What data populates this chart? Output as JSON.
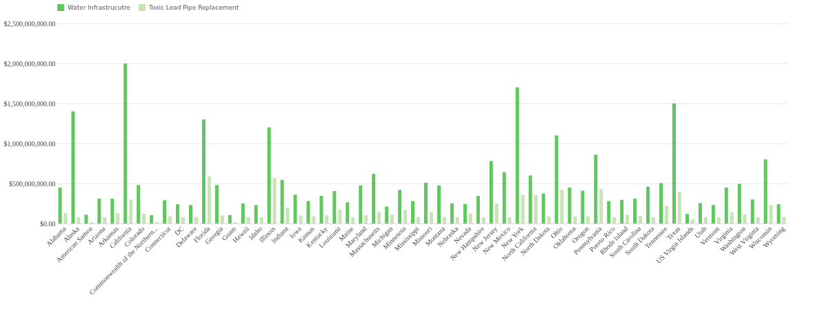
{
  "chart_data": {
    "type": "bar",
    "legend": "top",
    "grid": "y",
    "categories": [
      "Alabama",
      "Alaska",
      "American Samoa",
      "Arizona",
      "Arkansas",
      "California",
      "Colorado",
      "Commonwealth of the Northern...",
      "Connecticut",
      "DC",
      "Delaware",
      "Florida",
      "Georgia",
      "Guam",
      "Hawaii",
      "Idaho",
      "Illinois",
      "Indiana",
      "Iowa",
      "Kansas",
      "Kentucky",
      "Louisiana",
      "Maine",
      "Maryland",
      "Massachusetts",
      "Michigan",
      "Minnesota",
      "Mississippi",
      "Missouri",
      "Montana",
      "Nebraska",
      "Nevada",
      "New Hampshire",
      "New Jersey",
      "New Mexico",
      "New York",
      "North California",
      "North Dakota",
      "Ohio",
      "Oklahoma",
      "Oregon",
      "Pennsylvania",
      "Puerto Rico",
      "Rhode Island",
      "South Carolina",
      "South Dakota",
      "Tennessee",
      "Texas",
      "US Virgin Islands",
      "Utah",
      "Vermont",
      "Virginia",
      "Washington",
      "West Virginia",
      "Wisconsin",
      "Wyoming"
    ],
    "series": [
      {
        "name": "Water Infrastrucutre",
        "color": "#5ec75e",
        "values": [
          450000000,
          1400000000,
          110000000,
          310000000,
          310000000,
          2000000000,
          480000000,
          105000000,
          290000000,
          240000000,
          230000000,
          1300000000,
          480000000,
          105000000,
          250000000,
          230000000,
          1200000000,
          545000000,
          360000000,
          280000000,
          345000000,
          405000000,
          265000000,
          475000000,
          620000000,
          210000000,
          420000000,
          280000000,
          510000000,
          475000000,
          250000000,
          245000000,
          345000000,
          780000000,
          640000000,
          1700000000,
          600000000,
          375000000,
          1100000000,
          450000000,
          410000000,
          860000000,
          280000000,
          295000000,
          310000000,
          460000000,
          505000000,
          1500000000,
          120000000,
          255000000,
          230000000,
          450000000,
          495000000,
          300000000,
          800000000,
          240000000
        ]
      },
      {
        "name": "Toxic Lead Pipe Replacement",
        "color": "#c6e5b3",
        "values": [
          130000000,
          80000000,
          15000000,
          80000000,
          130000000,
          300000000,
          120000000,
          20000000,
          90000000,
          80000000,
          80000000,
          590000000,
          100000000,
          15000000,
          80000000,
          80000000,
          570000000,
          200000000,
          100000000,
          90000000,
          100000000,
          170000000,
          80000000,
          105000000,
          145000000,
          110000000,
          170000000,
          80000000,
          140000000,
          80000000,
          80000000,
          125000000,
          80000000,
          250000000,
          80000000,
          360000000,
          355000000,
          90000000,
          420000000,
          90000000,
          90000000,
          430000000,
          80000000,
          110000000,
          95000000,
          80000000,
          220000000,
          395000000,
          50000000,
          80000000,
          80000000,
          140000000,
          115000000,
          80000000,
          230000000,
          80000000
        ]
      }
    ],
    "ylim": [
      0,
      2500000000
    ],
    "yticks": [
      {
        "value": 0,
        "label": "$0.00"
      },
      {
        "value": 500000000,
        "label": "$500,000,000.00"
      },
      {
        "value": 1000000000,
        "label": "$1,000,000,000.00"
      },
      {
        "value": 1500000000,
        "label": "$1,500,000,000.00"
      },
      {
        "value": 2000000000,
        "label": "$2,000,000,000.00"
      },
      {
        "value": 2500000000,
        "label": "$2,500,000,000.00"
      }
    ]
  }
}
